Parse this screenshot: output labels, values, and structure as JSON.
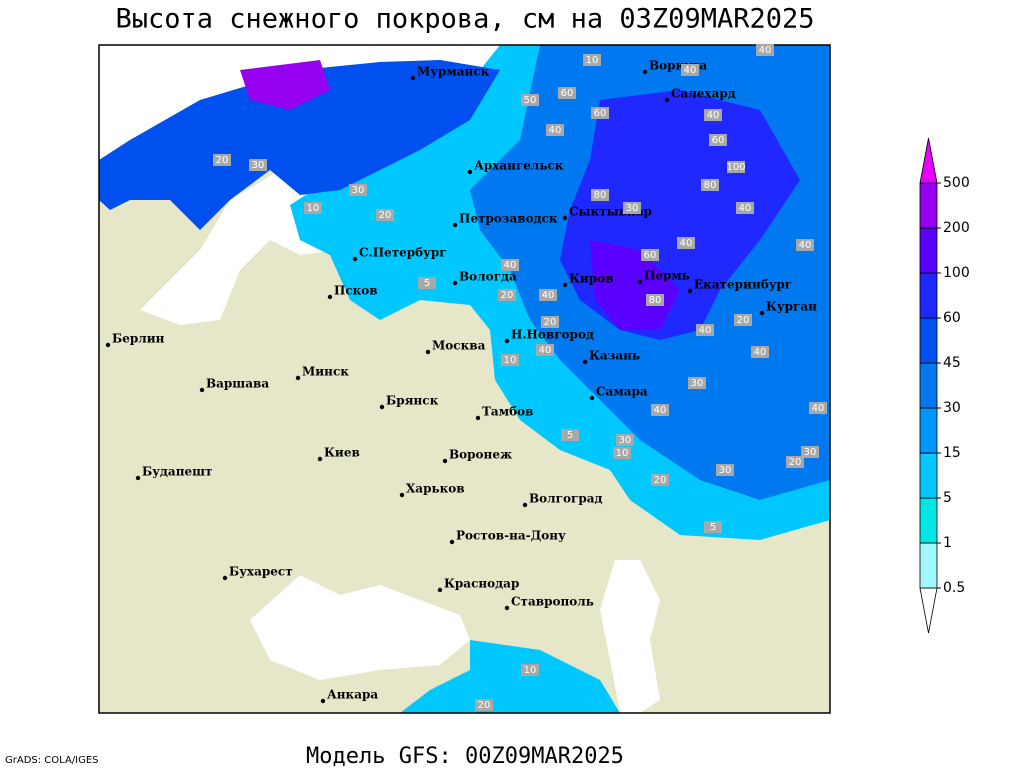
{
  "title": "Высота снежного покрова, см на 03Z09MAR2025",
  "footer": "Модель GFS: 00Z09MAR2025",
  "credit": "GrADS: COLA/IGES",
  "cities": [
    "Мурманск",
    "Воркута",
    "Салехард",
    "Архангельск",
    "Сыктывкар",
    "Петрозаводск",
    "С.Петербург",
    "Вологда",
    "Киров",
    "Пермь",
    "Екатеринбург",
    "Курган",
    "Псков",
    "Н.Новгород",
    "Казань",
    "Москва",
    "Берлин",
    "Минск",
    "Варшава",
    "Брянск",
    "Тамбов",
    "Самара",
    "Киев",
    "Воронеж",
    "Будапешт",
    "Харьков",
    "Волгоград",
    "Ростов-на-Дону",
    "Бухарест",
    "Краснодар",
    "Ставрополь",
    "Анкара"
  ],
  "contour_labels": [
    10,
    40,
    40,
    60,
    50,
    60,
    40,
    60,
    30,
    20,
    40,
    80,
    30,
    20,
    40,
    40,
    100,
    80,
    40,
    30,
    60,
    40,
    20,
    10,
    40,
    20,
    5,
    40,
    20,
    80,
    40,
    40,
    30,
    30,
    40,
    40,
    10,
    30,
    20,
    20,
    30,
    5,
    5,
    10,
    10,
    20
  ],
  "legend": {
    "levels": [
      0.5,
      1,
      5,
      15,
      30,
      45,
      60,
      100,
      200,
      500
    ],
    "colors": [
      "#ffffff",
      "#a0f5ff",
      "#00e6e6",
      "#00c8ff",
      "#0096ff",
      "#0078f0",
      "#0050f0",
      "#1e28ff",
      "#5a00ff",
      "#9600f0",
      "#e600ff"
    ]
  }
}
